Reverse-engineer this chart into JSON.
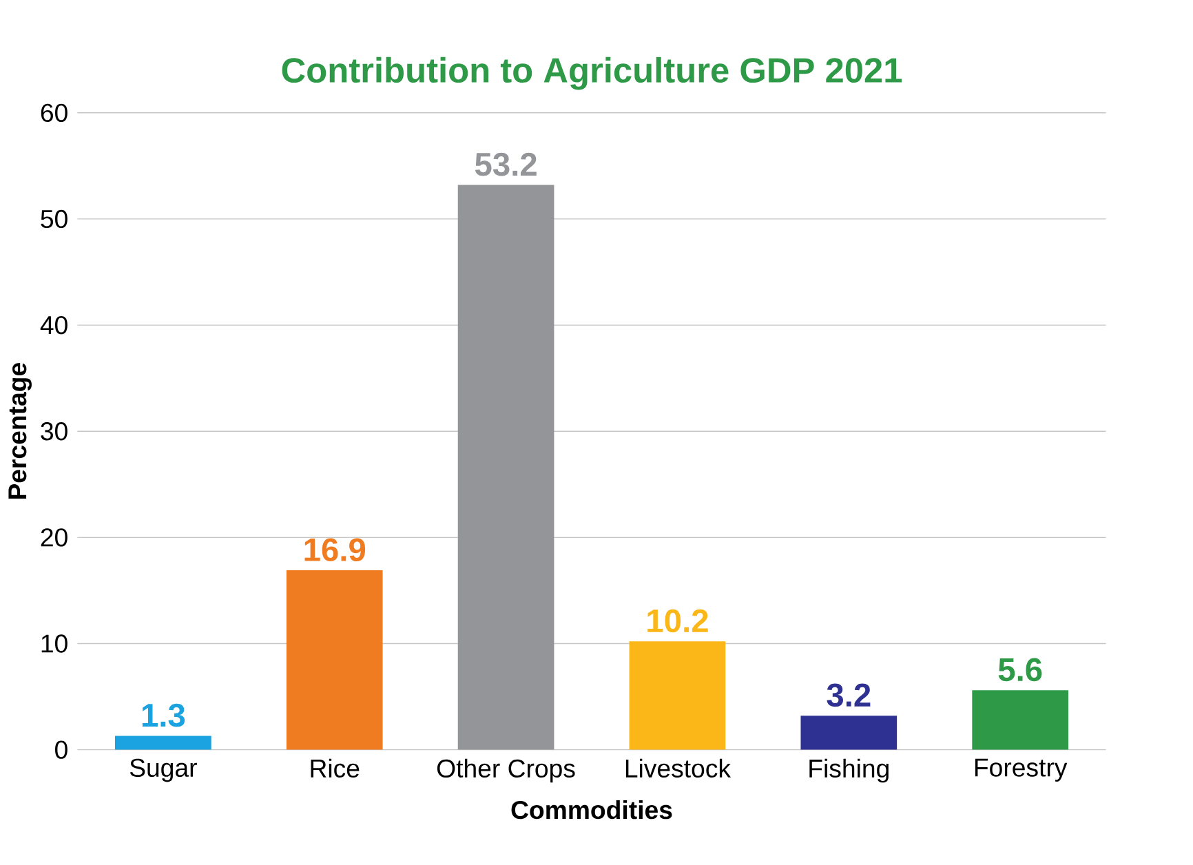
{
  "chart_data": {
    "type": "bar",
    "title": "Contribution to Agriculture GDP 2021",
    "xlabel": "Commodities",
    "ylabel": "Percentage",
    "categories": [
      "Sugar",
      "Rice",
      "Other Crops",
      "Livestock",
      "Fishing",
      "Forestry"
    ],
    "values": [
      1.3,
      16.9,
      53.2,
      10.2,
      3.2,
      5.6
    ],
    "colors": [
      "#1aa3e0",
      "#f07c22",
      "#939598",
      "#fbb617",
      "#2e3192",
      "#2e9a48"
    ],
    "ylim": [
      0,
      60
    ],
    "yticks": [
      0,
      10,
      20,
      30,
      40,
      50,
      60
    ],
    "grid": "y",
    "data_labels": true
  }
}
